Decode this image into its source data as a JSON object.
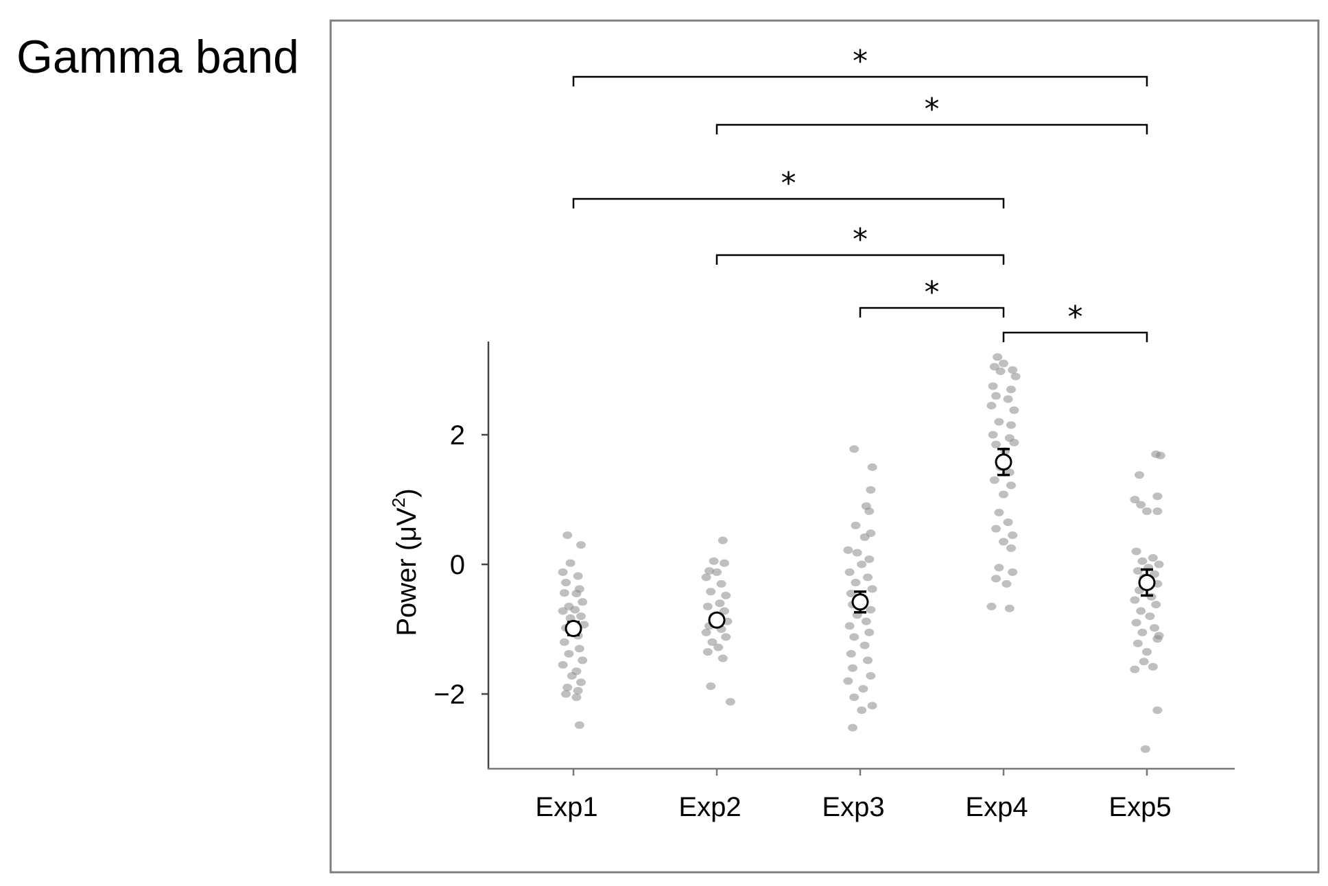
{
  "panel_title": "Gamma band",
  "chart_data": {
    "type": "scatter",
    "title": "Gamma band",
    "xlabel": "",
    "ylabel": "Power (μV²)",
    "ylabel_main": "Power (μV",
    "ylabel_sup": "2",
    "ylabel_close": ")",
    "categories": [
      "Exp1",
      "Exp2",
      "Exp3",
      "Exp4",
      "Exp5"
    ],
    "ylim": [
      -3.1,
      3.5
    ],
    "yticks": [
      2,
      0,
      -2
    ],
    "ytick_labels": [
      "2",
      "0",
      "−2"
    ],
    "grid": false,
    "point_color": "#8a8a8a",
    "series": [
      {
        "category": "Exp1",
        "mean": -0.99,
        "sem": 0.1,
        "points": [
          [
            -0.04,
            0.45
          ],
          [
            0.05,
            0.3
          ],
          [
            -0.02,
            0.02
          ],
          [
            -0.07,
            -0.12
          ],
          [
            0.03,
            -0.18
          ],
          [
            -0.05,
            -0.28
          ],
          [
            0.04,
            -0.38
          ],
          [
            -0.06,
            -0.44
          ],
          [
            0.02,
            -0.45
          ],
          [
            0.06,
            -0.58
          ],
          [
            -0.03,
            -0.65
          ],
          [
            0.01,
            -0.7
          ],
          [
            -0.07,
            -0.72
          ],
          [
            0.05,
            -0.8
          ],
          [
            -0.02,
            -0.83
          ],
          [
            0.07,
            -0.93
          ],
          [
            -0.05,
            -0.98
          ],
          [
            0.03,
            -1.1
          ],
          [
            -0.06,
            -1.2
          ],
          [
            0.04,
            -1.3
          ],
          [
            -0.03,
            -1.38
          ],
          [
            0.06,
            -1.48
          ],
          [
            -0.07,
            -1.55
          ],
          [
            0.02,
            -1.65
          ],
          [
            -0.01,
            -1.72
          ],
          [
            0.05,
            -1.82
          ],
          [
            -0.04,
            -1.9
          ],
          [
            0.03,
            -1.95
          ],
          [
            -0.05,
            -2.0
          ],
          [
            0.02,
            -2.05
          ],
          [
            0.04,
            -2.48
          ]
        ]
      },
      {
        "category": "Exp2",
        "mean": -0.86,
        "sem": 0.08,
        "points": [
          [
            0.04,
            0.37
          ],
          [
            -0.02,
            0.05
          ],
          [
            0.05,
            0.02
          ],
          [
            -0.05,
            -0.1
          ],
          [
            0.0,
            -0.12
          ],
          [
            -0.07,
            -0.2
          ],
          [
            0.03,
            -0.3
          ],
          [
            -0.04,
            -0.42
          ],
          [
            0.06,
            -0.48
          ],
          [
            0.02,
            -0.6
          ],
          [
            -0.06,
            -0.65
          ],
          [
            0.05,
            -0.72
          ],
          [
            -0.02,
            -0.8
          ],
          [
            0.07,
            -0.88
          ],
          [
            -0.05,
            -0.95
          ],
          [
            0.03,
            -1.0
          ],
          [
            -0.07,
            -1.05
          ],
          [
            0.06,
            -1.12
          ],
          [
            -0.03,
            -1.2
          ],
          [
            0.01,
            -1.28
          ],
          [
            -0.06,
            -1.35
          ],
          [
            0.04,
            -1.45
          ],
          [
            -0.04,
            -1.88
          ],
          [
            0.09,
            -2.12
          ]
        ]
      },
      {
        "category": "Exp3",
        "mean": -0.58,
        "sem": 0.16,
        "points": [
          [
            -0.04,
            1.78
          ],
          [
            0.08,
            1.5
          ],
          [
            0.07,
            1.15
          ],
          [
            0.04,
            0.9
          ],
          [
            0.06,
            0.82
          ],
          [
            -0.03,
            0.6
          ],
          [
            0.07,
            0.48
          ],
          [
            0.03,
            0.42
          ],
          [
            -0.08,
            0.22
          ],
          [
            -0.02,
            0.18
          ],
          [
            0.06,
            0.08
          ],
          [
            0.01,
            0.0
          ],
          [
            -0.07,
            -0.12
          ],
          [
            0.05,
            -0.2
          ],
          [
            -0.03,
            -0.28
          ],
          [
            0.08,
            -0.38
          ],
          [
            -0.06,
            -0.45
          ],
          [
            0.02,
            -0.52
          ],
          [
            -0.05,
            -0.62
          ],
          [
            0.07,
            -0.7
          ],
          [
            -0.02,
            -0.78
          ],
          [
            0.04,
            -0.88
          ],
          [
            -0.07,
            -0.95
          ],
          [
            0.06,
            -1.05
          ],
          [
            -0.04,
            -1.12
          ],
          [
            0.03,
            -1.25
          ],
          [
            -0.06,
            -1.38
          ],
          [
            0.05,
            -1.48
          ],
          [
            -0.05,
            -1.6
          ],
          [
            0.07,
            -1.72
          ],
          [
            -0.08,
            -1.8
          ],
          [
            0.02,
            -1.92
          ],
          [
            -0.04,
            -2.05
          ],
          [
            0.08,
            -2.18
          ],
          [
            0.01,
            -2.25
          ],
          [
            -0.05,
            -2.52
          ]
        ]
      },
      {
        "category": "Exp4",
        "mean": 1.58,
        "sem": 0.2,
        "points": [
          [
            -0.04,
            3.2
          ],
          [
            0.0,
            3.1
          ],
          [
            -0.06,
            3.05
          ],
          [
            0.06,
            3.0
          ],
          [
            -0.02,
            2.98
          ],
          [
            0.08,
            2.9
          ],
          [
            -0.07,
            2.75
          ],
          [
            0.05,
            2.7
          ],
          [
            -0.05,
            2.6
          ],
          [
            0.03,
            2.55
          ],
          [
            -0.08,
            2.45
          ],
          [
            0.07,
            2.38
          ],
          [
            -0.03,
            2.2
          ],
          [
            0.05,
            2.15
          ],
          [
            -0.07,
            2.0
          ],
          [
            0.04,
            1.95
          ],
          [
            0.07,
            1.88
          ],
          [
            -0.05,
            1.85
          ],
          [
            0.01,
            1.75
          ],
          [
            -0.02,
            1.5
          ],
          [
            0.04,
            1.42
          ],
          [
            -0.06,
            1.3
          ],
          [
            0.05,
            1.22
          ],
          [
            0.0,
            1.08
          ],
          [
            -0.03,
            0.8
          ],
          [
            0.03,
            0.65
          ],
          [
            -0.05,
            0.55
          ],
          [
            0.06,
            0.45
          ],
          [
            0.0,
            0.35
          ],
          [
            0.05,
            0.25
          ],
          [
            -0.03,
            -0.05
          ],
          [
            0.06,
            -0.12
          ],
          [
            -0.05,
            -0.22
          ],
          [
            0.02,
            -0.3
          ],
          [
            -0.08,
            -0.65
          ],
          [
            0.04,
            -0.68
          ]
        ]
      },
      {
        "category": "Exp5",
        "mean": -0.28,
        "sem": 0.2,
        "points": [
          [
            0.09,
            1.68
          ],
          [
            0.06,
            1.7
          ],
          [
            -0.05,
            1.38
          ],
          [
            0.07,
            1.05
          ],
          [
            -0.08,
            1.0
          ],
          [
            -0.04,
            0.92
          ],
          [
            0.0,
            0.82
          ],
          [
            0.07,
            0.82
          ],
          [
            -0.07,
            0.2
          ],
          [
            0.04,
            0.1
          ],
          [
            -0.03,
            0.05
          ],
          [
            0.08,
            0.0
          ],
          [
            0.01,
            -0.05
          ],
          [
            -0.06,
            -0.1
          ],
          [
            0.05,
            -0.15
          ],
          [
            -0.02,
            -0.2
          ],
          [
            0.07,
            -0.3
          ],
          [
            -0.05,
            -0.4
          ],
          [
            0.03,
            -0.5
          ],
          [
            -0.08,
            -0.55
          ],
          [
            0.06,
            -0.62
          ],
          [
            -0.04,
            -0.72
          ],
          [
            0.02,
            -0.8
          ],
          [
            -0.07,
            -0.9
          ],
          [
            0.05,
            -0.98
          ],
          [
            -0.03,
            -1.05
          ],
          [
            0.08,
            -1.1
          ],
          [
            0.07,
            -1.15
          ],
          [
            -0.06,
            -1.22
          ],
          [
            0.0,
            -1.35
          ],
          [
            -0.02,
            -1.5
          ],
          [
            0.04,
            -1.58
          ],
          [
            -0.08,
            -1.62
          ],
          [
            0.07,
            -2.25
          ],
          [
            -0.01,
            -2.85
          ]
        ]
      }
    ],
    "significance": [
      {
        "from": "Exp1",
        "to": "Exp5",
        "label": "*"
      },
      {
        "from": "Exp2",
        "to": "Exp5",
        "label": "*"
      },
      {
        "from": "Exp1",
        "to": "Exp4",
        "label": "*"
      },
      {
        "from": "Exp2",
        "to": "Exp4",
        "label": "*"
      },
      {
        "from": "Exp3",
        "to": "Exp4",
        "label": "*"
      },
      {
        "from": "Exp4",
        "to": "Exp5",
        "label": "*"
      }
    ]
  }
}
